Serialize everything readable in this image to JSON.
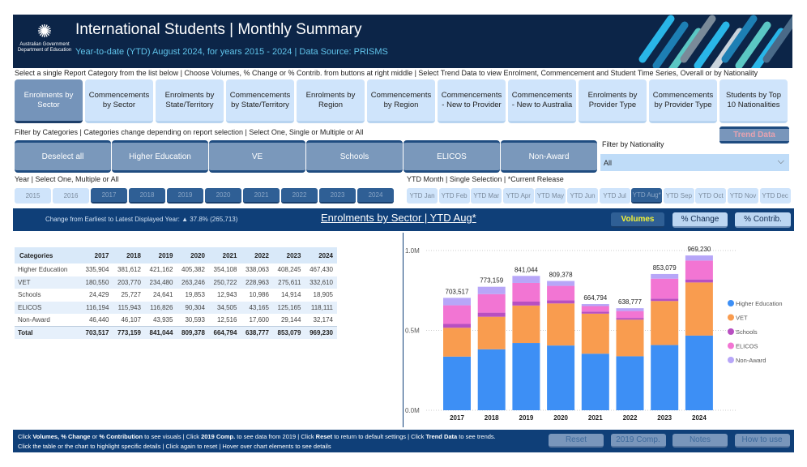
{
  "header": {
    "title": "International Students | Monthly Summary",
    "subtitle": "Year-to-date (YTD) August 2024, for years 2015 - 2024 | Data Source: PRISMS",
    "logo_line1": "Australian Government",
    "logo_line2": "Department of Education"
  },
  "instructions": "Select a single Report Category from the list below | Choose Volumes, % Change or % Contrib. from buttons at right middle | Select Trend Data to view Enrolment, Commencement and Student Time Series, Overall or by Nationality",
  "reports": [
    "Enrolments by Sector",
    "Commencements by Sector",
    "Enrolments by State/Territory",
    "Commencements by State/Territory",
    "Enrolments by Region",
    "Commencements by Region",
    "Commencements - New to Provider",
    "Commencements - New to Australia",
    "Enrolments by Provider Type",
    "Commencements by Provider Type",
    "Students by Top 10 Nationalities"
  ],
  "selected_report": "Enrolments by Sector",
  "trend_data_label": "Trend Data",
  "filter_label": "Filter by Categories | Categories change depending on report selection | Select One, Single or Multiple or All",
  "categories": [
    "Deselect all",
    "Higher Education",
    "VE",
    "Schools",
    "ELICOS",
    "Non-Award"
  ],
  "nationality": {
    "label": "Filter by Nationality",
    "value": "All"
  },
  "year_label": "Year | Select One, Multiple or All",
  "years": [
    "2015",
    "2016",
    "2017",
    "2018",
    "2019",
    "2020",
    "2021",
    "2022",
    "2023",
    "2024"
  ],
  "years_selected": [
    "2017",
    "2018",
    "2019",
    "2020",
    "2021",
    "2022",
    "2023",
    "2024"
  ],
  "month_label": "YTD Month | Single Selection | *Current Release",
  "months": [
    "YTD Jan",
    "YTD Feb",
    "YTD Mar",
    "YTD Apr",
    "YTD May",
    "YTD Jun",
    "YTD Jul",
    "YTD Aug*",
    "YTD Sep",
    "YTD Oct",
    "YTD Nov",
    "YTD Dec"
  ],
  "month_selected": "YTD Aug*",
  "band": {
    "change_text": "Change from Earliest to Latest Displayed Year: ▲ 37.8% (265,713)",
    "report_title": "Enrolments by Sector | YTD Aug*",
    "volumes": "Volumes",
    "pct_change": "% Change",
    "pct_contrib": "% Contrib."
  },
  "table": {
    "headers": [
      "Categories",
      "2017",
      "2018",
      "2019",
      "2020",
      "2021",
      "2022",
      "2023",
      "2024"
    ],
    "rows": [
      [
        "Higher Education",
        "335,904",
        "381,612",
        "421,162",
        "405,382",
        "354,108",
        "338,063",
        "408,245",
        "467,430"
      ],
      [
        "VET",
        "180,550",
        "203,770",
        "234,480",
        "263,246",
        "250,722",
        "228,963",
        "275,611",
        "332,610"
      ],
      [
        "Schools",
        "24,429",
        "25,727",
        "24,641",
        "19,853",
        "12,943",
        "10,986",
        "14,914",
        "18,905"
      ],
      [
        "ELICOS",
        "116,194",
        "115,943",
        "116,826",
        "90,304",
        "34,505",
        "43,165",
        "125,165",
        "118,111"
      ],
      [
        "Non-Award",
        "46,440",
        "46,107",
        "43,935",
        "30,593",
        "12,516",
        "17,600",
        "29,144",
        "32,174"
      ]
    ],
    "total": [
      "Total",
      "703,517",
      "773,159",
      "841,044",
      "809,378",
      "664,794",
      "638,777",
      "853,079",
      "969,230"
    ]
  },
  "chart_data": {
    "type": "bar",
    "stacked": true,
    "categories": [
      "2017",
      "2018",
      "2019",
      "2020",
      "2021",
      "2022",
      "2023",
      "2024"
    ],
    "series": [
      {
        "name": "Higher Education",
        "color": "#3d8ff5",
        "values": [
          335904,
          381612,
          421162,
          405382,
          354108,
          338063,
          408245,
          467430
        ]
      },
      {
        "name": "VET",
        "color": "#f99c4f",
        "values": [
          180550,
          203770,
          234480,
          263246,
          250722,
          228963,
          275611,
          332610
        ]
      },
      {
        "name": "Schools",
        "color": "#b84fc1",
        "values": [
          24429,
          25727,
          24641,
          19853,
          12943,
          10986,
          14914,
          18905
        ]
      },
      {
        "name": "ELICOS",
        "color": "#f275d3",
        "values": [
          116194,
          115943,
          116826,
          90304,
          34505,
          43165,
          125165,
          118111
        ]
      },
      {
        "name": "Non-Award",
        "color": "#b7a6f8",
        "values": [
          46440,
          46107,
          43935,
          30593,
          12516,
          17600,
          29144,
          32174
        ]
      }
    ],
    "totals": [
      "703,517",
      "773,159",
      "841,044",
      "809,378",
      "664,794",
      "638,777",
      "853,079",
      "969,230"
    ],
    "yticks": [
      "0.0M",
      "0.5M",
      "1.0M"
    ],
    "ylim": [
      0,
      1000000
    ],
    "grid": true,
    "legend": "right"
  },
  "footer": {
    "line1_html": "Click <b>Volumes, % Change</b> or <b>% Contribution</b> to see visuals | Click <b>2019 Comp.</b> to see data from 2019 | Click <b>Reset</b> to return to default settings | Click <b>Trend Data</b> to see trends.",
    "line2": "Click the table or the chart to highlight specific details  |  Click again to reset  |  Hover over chart elements to see details",
    "buttons": [
      "Reset",
      "2019 Comp.",
      "Notes",
      "How to use"
    ]
  }
}
